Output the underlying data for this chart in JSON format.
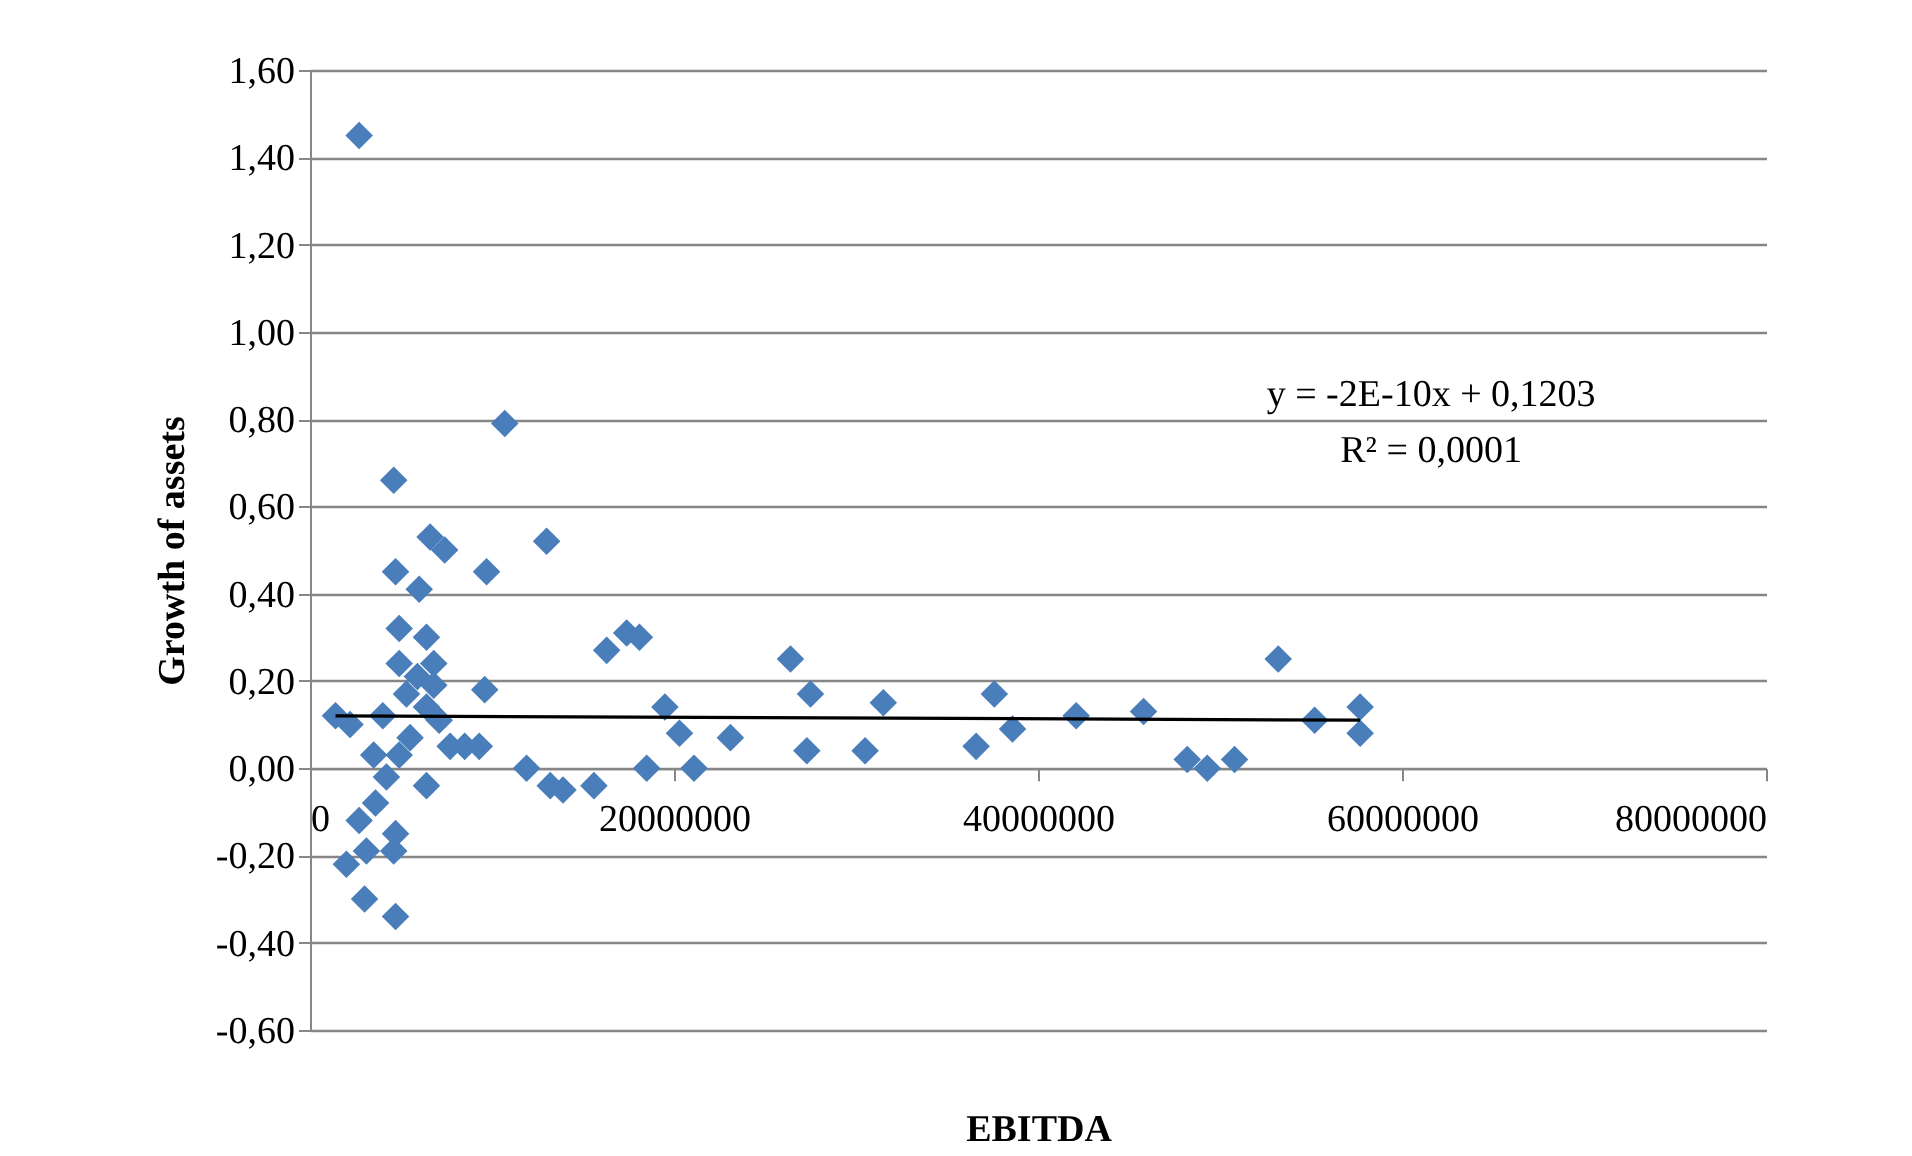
{
  "chart_data": {
    "type": "scatter",
    "xlabel": "EBITDA",
    "ylabel": "Growth of assets",
    "xlim": [
      0,
      80000000
    ],
    "xticks": [
      0,
      20000000,
      40000000,
      60000000,
      80000000
    ],
    "ylim": [
      -0.6,
      1.6
    ],
    "yticks": [
      {
        "value": -0.6,
        "label": "-0,60"
      },
      {
        "value": -0.4,
        "label": "-0,40"
      },
      {
        "value": -0.2,
        "label": "-0,20"
      },
      {
        "value": 0,
        "label": "0,00"
      },
      {
        "value": 0.2,
        "label": "0,20"
      },
      {
        "value": 0.4,
        "label": "0,40"
      },
      {
        "value": 0.6,
        "label": "0,60"
      },
      {
        "value": 0.8,
        "label": "0,80"
      },
      {
        "value": 1.0,
        "label": "1,00"
      },
      {
        "value": 1.2,
        "label": "1,20"
      },
      {
        "value": 1.4,
        "label": "1,40"
      },
      {
        "value": 1.6,
        "label": "1,60"
      }
    ],
    "grid": "y",
    "marker": "diamond",
    "annotations": [
      "y = -2E-10x + 0,1203",
      "R² = 0,0001"
    ],
    "series": [
      {
        "color": "#4a7ebb",
        "x": [
          1400000,
          2200000,
          4000000,
          6600000,
          7400000,
          13000000,
          4700000,
          6000000,
          9700000,
          4900000,
          6400000,
          4900000,
          6800000,
          5900000,
          6800000,
          5300000,
          9600000,
          6400000,
          7100000,
          5500000,
          3500000,
          4900000,
          7700000,
          8500000,
          9300000,
          6400000,
          4200000,
          3600000,
          2700000,
          4700000,
          2000000,
          3100000,
          4600000,
          3000000,
          4700000,
          11900000,
          13200000,
          13900000,
          15600000,
          18500000,
          16300000,
          17400000,
          18100000,
          19500000,
          20300000,
          21100000,
          23100000,
          26400000,
          27300000,
          27500000,
          30500000,
          31500000,
          36600000,
          37600000,
          38600000,
          42100000,
          45800000,
          48200000,
          49300000,
          50800000,
          53200000,
          55200000,
          57700000,
          57700000,
          2700000,
          10700000,
          4600000
        ],
        "values": [
          0.12,
          0.1,
          0.12,
          0.53,
          0.5,
          0.52,
          0.45,
          0.41,
          0.45,
          0.32,
          0.3,
          0.24,
          0.24,
          0.21,
          0.19,
          0.17,
          0.18,
          0.14,
          0.11,
          0.07,
          0.03,
          0.03,
          0.05,
          0.05,
          0.05,
          -0.04,
          -0.02,
          -0.08,
          -0.12,
          -0.15,
          -0.22,
          -0.19,
          -0.19,
          -0.3,
          -0.34,
          0.0,
          -0.04,
          -0.05,
          -0.04,
          0.0,
          0.27,
          0.31,
          0.3,
          0.14,
          0.08,
          0.0,
          0.07,
          0.25,
          0.04,
          0.17,
          0.04,
          0.15,
          0.05,
          0.17,
          0.09,
          0.12,
          0.13,
          0.02,
          0.0,
          0.02,
          0.25,
          0.11,
          0.14,
          0.08,
          1.45,
          0.79,
          0.66
        ]
      },
      {
        "type": "line",
        "marker": "none",
        "color": "#000000",
        "x": [
          1400000,
          57700000
        ],
        "values": [
          0.12,
          0.11
        ]
      }
    ]
  }
}
